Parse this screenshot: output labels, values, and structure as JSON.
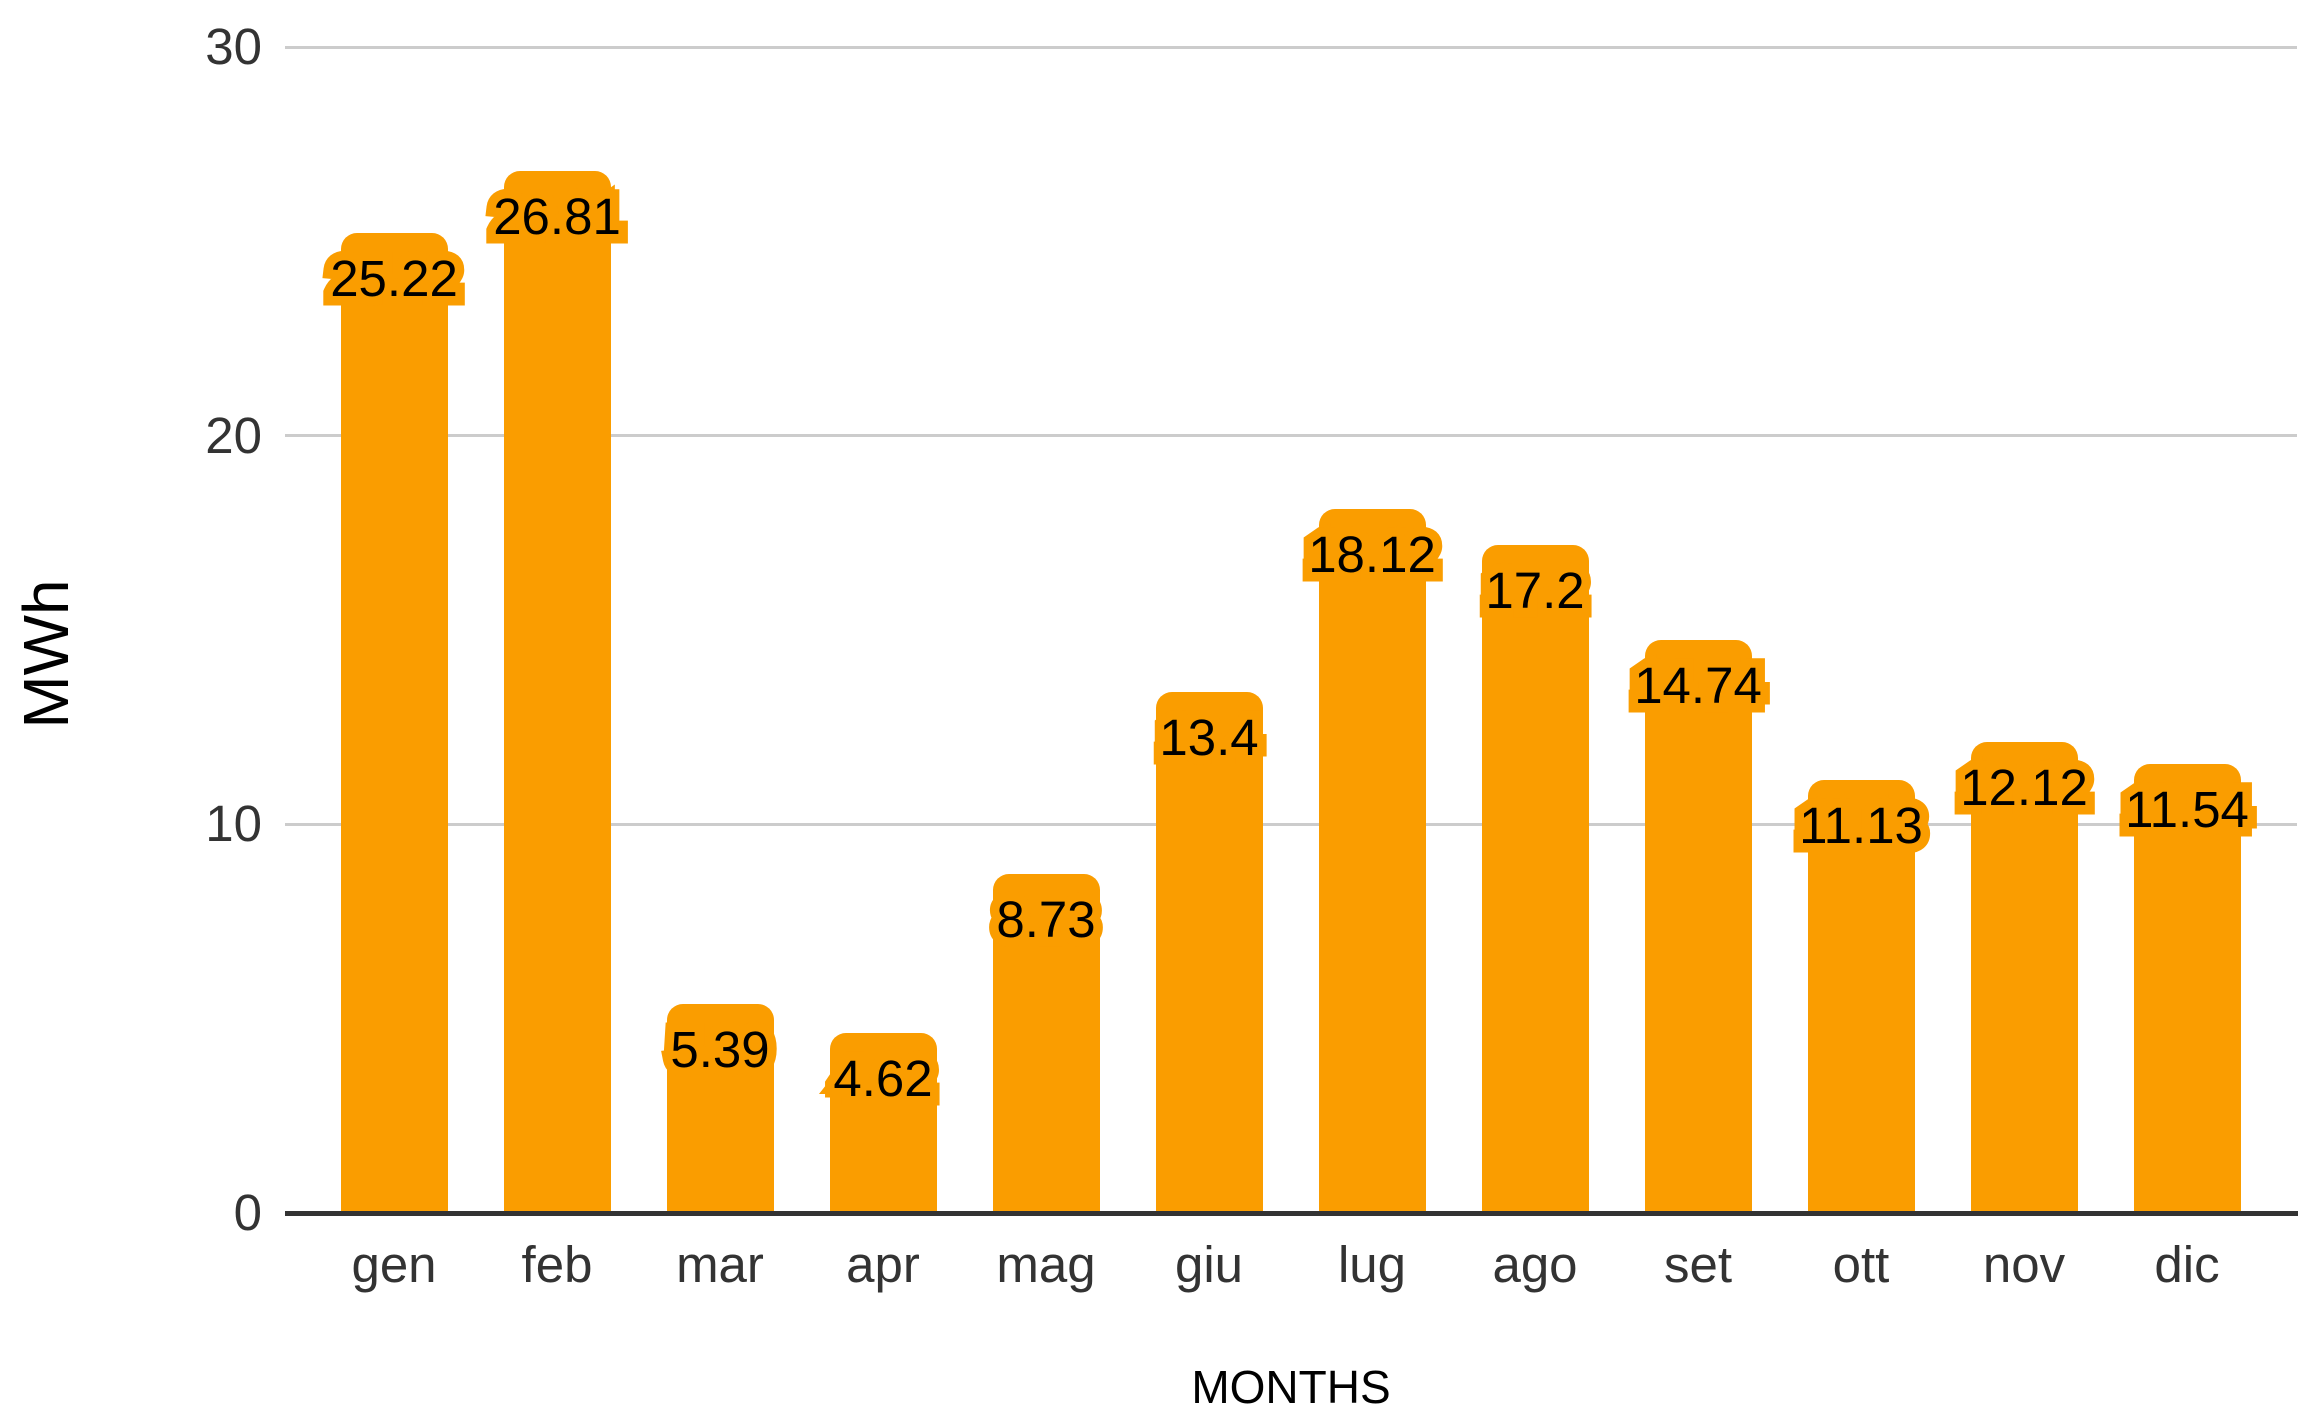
{
  "chart_data": {
    "type": "bar",
    "title": "",
    "xlabel": "MONTHS",
    "ylabel": "MWh",
    "categories": [
      "gen",
      "feb",
      "mar",
      "apr",
      "mag",
      "giu",
      "lug",
      "ago",
      "set",
      "ott",
      "nov",
      "dic"
    ],
    "values": [
      25.22,
      26.81,
      5.39,
      4.62,
      8.73,
      13.4,
      18.12,
      17.2,
      14.74,
      11.13,
      12.12,
      11.54
    ],
    "data_labels": [
      "25.22",
      "26.81",
      "5.39",
      "4.62",
      "8.73",
      "13.4",
      "18.12",
      "17.2",
      "14.74",
      "11.13",
      "12.12",
      "11.54"
    ],
    "series_count": 1,
    "ylim": [
      0,
      30
    ],
    "yticks": [
      0,
      10,
      20,
      30
    ],
    "grid": true,
    "legend": "none",
    "colors": {
      "bar": "#fa9d00",
      "label_text": "#000000",
      "label_halo": "#fa9d00",
      "axis_text": "#333333",
      "axis_title_text": "#000000",
      "gridline": "#cccccc",
      "axis_line": "#333333",
      "background": "#ffffff"
    }
  }
}
